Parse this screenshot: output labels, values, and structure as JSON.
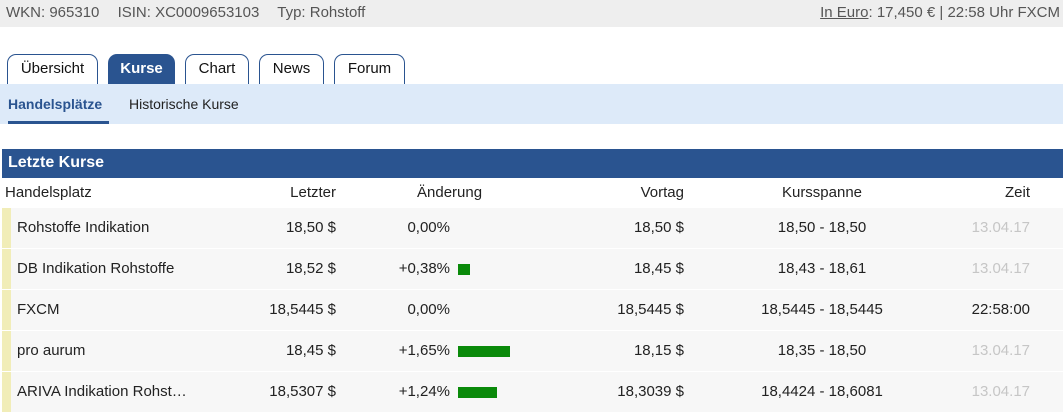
{
  "topbar": {
    "wkn": "WKN: 965310",
    "isin": "ISIN: XC0009653103",
    "typ": "Typ: Rohstoff",
    "currency_link": "In Euro",
    "price_info": ": 17,450 € | 22:58 Uhr FXCM"
  },
  "tabs": [
    {
      "label": "Übersicht",
      "active": false
    },
    {
      "label": "Kurse",
      "active": true
    },
    {
      "label": "Chart",
      "active": false
    },
    {
      "label": "News",
      "active": false
    },
    {
      "label": "Forum",
      "active": false
    }
  ],
  "subnav": [
    {
      "label": "Handelsplätze",
      "active": true
    },
    {
      "label": "Historische Kurse",
      "active": false
    }
  ],
  "panel": {
    "title": "Letzte Kurse",
    "columns": {
      "venue": "Handelsplatz",
      "last": "Letzter",
      "change": "Änderung",
      "prev": "Vortag",
      "range": "Kursspanne",
      "time": "Zeit"
    },
    "rows": [
      {
        "venue": "Rohstoffe Indikation",
        "last": "18,50 $",
        "change": "0,00%",
        "change_pct": 0.0,
        "prev": "18,50 $",
        "range": "18,50 - 18,50",
        "time": "13.04.17"
      },
      {
        "venue": "DB Indikation Rohstoffe",
        "last": "18,52 $",
        "change": "+0,38%",
        "change_pct": 0.38,
        "prev": "18,45 $",
        "range": "18,43 - 18,61",
        "time": "13.04.17"
      },
      {
        "venue": "FXCM",
        "last": "18,5445 $",
        "change": "0,00%",
        "change_pct": 0.0,
        "prev": "18,5445 $",
        "range": "18,5445 - 18,5445",
        "time": "22:58:00"
      },
      {
        "venue": "pro aurum",
        "last": "18,45 $",
        "change": "+1,65%",
        "change_pct": 1.65,
        "prev": "18,15 $",
        "range": "18,35 - 18,50",
        "time": "13.04.17"
      },
      {
        "venue": "ARIVA Indikation Rohst…",
        "last": "18,5307 $",
        "change": "+1,24%",
        "change_pct": 1.24,
        "prev": "18,3039 $",
        "range": "18,4424 - 18,6081",
        "time": "13.04.17"
      }
    ]
  },
  "colors": {
    "accent": "#2a5490",
    "positive_bar": "#0a8a0a",
    "row_marker": "#f1edb8",
    "stale_time": "#c6c6c6"
  }
}
